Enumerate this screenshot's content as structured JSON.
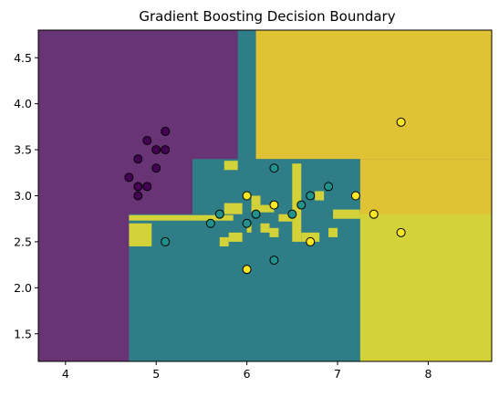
{
  "chart_data": {
    "type": "scatter",
    "title": "Gradient Boosting Decision Boundary",
    "xlabel": "",
    "ylabel": "",
    "xlim": [
      3.7,
      8.7
    ],
    "ylim": [
      1.2,
      4.8
    ],
    "xticks": [
      4,
      5,
      6,
      7,
      8
    ],
    "yticks": [
      1.5,
      2.0,
      2.5,
      3.0,
      3.5,
      4.0,
      4.5
    ],
    "xtick_labels": [
      "4",
      "5",
      "6",
      "7",
      "8"
    ],
    "ytick_labels": [
      "1.5",
      "2.0",
      "2.5",
      "3.0",
      "3.5",
      "4.0",
      "4.5"
    ],
    "grid": false,
    "class_colors": [
      "#440154",
      "#21918c",
      "#fde725"
    ],
    "region_alpha": 0.8,
    "regions": [
      {
        "cls": 0,
        "x": [
          3.7,
          8.7
        ],
        "y": [
          1.2,
          4.8
        ]
      },
      {
        "cls": 1,
        "x": [
          4.7,
          8.7
        ],
        "y": [
          1.2,
          2.8
        ]
      },
      {
        "cls": 1,
        "x": [
          5.4,
          7.25
        ],
        "y": [
          2.8,
          3.4
        ]
      },
      {
        "cls": 1,
        "x": [
          5.9,
          6.1
        ],
        "y": [
          3.4,
          4.8
        ]
      },
      {
        "cls": 2,
        "x": [
          6.1,
          8.7
        ],
        "y": [
          3.4,
          4.8
        ]
      },
      {
        "cls": 2,
        "x": [
          7.25,
          8.7
        ],
        "y": [
          1.2,
          3.4
        ]
      },
      {
        "cls": 2,
        "x": [
          4.7,
          5.85
        ],
        "y": [
          2.73,
          2.79
        ]
      },
      {
        "cls": 2,
        "x": [
          4.7,
          4.95
        ],
        "y": [
          2.45,
          2.7
        ]
      },
      {
        "cls": 2,
        "x": [
          5.75,
          5.95
        ],
        "y": [
          2.8,
          2.92
        ]
      },
      {
        "cls": 2,
        "x": [
          6.05,
          6.15
        ],
        "y": [
          2.9,
          3.0
        ]
      },
      {
        "cls": 2,
        "x": [
          5.75,
          5.9
        ],
        "y": [
          3.28,
          3.38
        ]
      },
      {
        "cls": 2,
        "x": [
          5.7,
          5.8
        ],
        "y": [
          2.45,
          2.55
        ]
      },
      {
        "cls": 2,
        "x": [
          6.5,
          6.6
        ],
        "y": [
          2.5,
          3.35
        ]
      },
      {
        "cls": 2,
        "x": [
          6.6,
          6.8
        ],
        "y": [
          2.5,
          2.6
        ]
      },
      {
        "cls": 2,
        "x": [
          6.9,
          7.0
        ],
        "y": [
          2.55,
          2.65
        ]
      },
      {
        "cls": 2,
        "x": [
          6.75,
          6.85
        ],
        "y": [
          2.95,
          3.05
        ]
      },
      {
        "cls": 2,
        "x": [
          6.0,
          6.05
        ],
        "y": [
          2.6,
          2.7
        ]
      },
      {
        "cls": 2,
        "x": [
          6.15,
          6.25
        ],
        "y": [
          2.6,
          2.7
        ]
      },
      {
        "cls": 2,
        "x": [
          6.25,
          6.35
        ],
        "y": [
          2.55,
          2.65
        ]
      },
      {
        "cls": 2,
        "x": [
          6.05,
          6.3
        ],
        "y": [
          2.82,
          2.9
        ]
      },
      {
        "cls": 2,
        "x": [
          6.35,
          6.5
        ],
        "y": [
          2.72,
          2.8
        ]
      },
      {
        "cls": 2,
        "x": [
          6.95,
          7.25
        ],
        "y": [
          2.75,
          2.85
        ]
      },
      {
        "cls": 2,
        "x": [
          5.8,
          5.95
        ],
        "y": [
          2.5,
          2.6
        ]
      }
    ],
    "points": [
      {
        "x": 4.9,
        "y": 3.6,
        "cls": 0
      },
      {
        "x": 5.1,
        "y": 3.7,
        "cls": 0
      },
      {
        "x": 4.8,
        "y": 3.4,
        "cls": 0
      },
      {
        "x": 5.0,
        "y": 3.5,
        "cls": 0
      },
      {
        "x": 5.1,
        "y": 3.5,
        "cls": 0
      },
      {
        "x": 5.0,
        "y": 3.3,
        "cls": 0
      },
      {
        "x": 4.7,
        "y": 3.2,
        "cls": 0
      },
      {
        "x": 4.8,
        "y": 3.1,
        "cls": 0
      },
      {
        "x": 4.9,
        "y": 3.1,
        "cls": 0
      },
      {
        "x": 4.8,
        "y": 3.0,
        "cls": 0
      },
      {
        "x": 5.1,
        "y": 2.5,
        "cls": 1
      },
      {
        "x": 5.6,
        "y": 2.7,
        "cls": 1
      },
      {
        "x": 5.7,
        "y": 2.8,
        "cls": 1
      },
      {
        "x": 6.0,
        "y": 2.7,
        "cls": 1
      },
      {
        "x": 6.1,
        "y": 2.8,
        "cls": 1
      },
      {
        "x": 6.3,
        "y": 3.3,
        "cls": 1
      },
      {
        "x": 6.3,
        "y": 2.3,
        "cls": 1
      },
      {
        "x": 6.5,
        "y": 2.8,
        "cls": 1
      },
      {
        "x": 6.6,
        "y": 2.9,
        "cls": 1
      },
      {
        "x": 6.7,
        "y": 3.0,
        "cls": 1
      },
      {
        "x": 6.9,
        "y": 3.1,
        "cls": 1
      },
      {
        "x": 6.0,
        "y": 3.0,
        "cls": 2
      },
      {
        "x": 6.0,
        "y": 2.2,
        "cls": 2
      },
      {
        "x": 6.3,
        "y": 2.9,
        "cls": 2
      },
      {
        "x": 6.7,
        "y": 2.5,
        "cls": 2
      },
      {
        "x": 7.2,
        "y": 3.0,
        "cls": 2
      },
      {
        "x": 7.4,
        "y": 2.8,
        "cls": 2
      },
      {
        "x": 7.7,
        "y": 3.8,
        "cls": 2
      },
      {
        "x": 7.7,
        "y": 2.6,
        "cls": 2
      }
    ]
  }
}
